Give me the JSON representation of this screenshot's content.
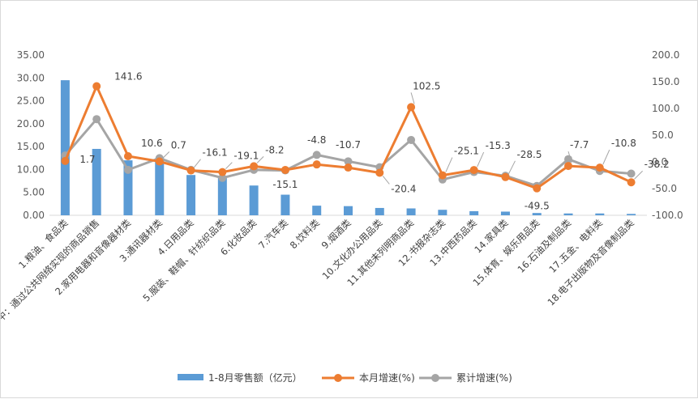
{
  "chart_data": {
    "type": "bar+line",
    "title": "",
    "categories": [
      "1.粮油、食品类",
      "其中：通过公共网络实现的商品销售",
      "2.家用电器和音像器材类",
      "3.通讯器材类",
      "4.日用品类",
      "5.服装、鞋帽、针纺织品类",
      "6.化妆品类",
      "7.汽车类",
      "8.饮料类",
      "9.烟酒类",
      "10.文化办公用品类",
      "11.其他未列明商品类",
      "12.书报杂志类",
      "13.中西药品类",
      "14.家具类",
      "15.体育、娱乐用品类",
      "16.石油及制品类",
      "17.五金、电料类",
      "18.电子出版物及音像制品类"
    ],
    "y_left": {
      "ylim": [
        0,
        35
      ],
      "ticks": [
        "0.00",
        "5.00",
        "10.00",
        "15.00",
        "20.00",
        "25.00",
        "30.00",
        "35.00"
      ]
    },
    "y_right": {
      "ylim": [
        -100,
        200
      ],
      "ticks": [
        "-100.0",
        "-50.0",
        "0.0",
        "50.0",
        "100.0",
        "150.0",
        "200.0"
      ]
    },
    "series": [
      {
        "name": "1-8月零售额（亿元）",
        "kind": "bar",
        "axis": "left",
        "color": "#5b9bd5",
        "values": [
          29.5,
          14.5,
          12.0,
          12.5,
          8.8,
          8.5,
          6.5,
          4.5,
          2.1,
          2.0,
          1.6,
          1.5,
          1.2,
          0.9,
          0.8,
          0.5,
          0.4,
          0.4,
          0.3
        ]
      },
      {
        "name": "本月增速(%)",
        "kind": "line",
        "axis": "right",
        "color": "#ed7d31",
        "values": [
          1.7,
          141.6,
          10.6,
          0.7,
          -16.1,
          -19.1,
          -8.2,
          -15.1,
          -4.8,
          -10.7,
          -20.4,
          102.5,
          -25.1,
          -15.3,
          -28.5,
          -49.5,
          -7.7,
          -10.8,
          -38.2
        ],
        "labels": [
          "1.7",
          "141.6",
          "10.6",
          "0.7",
          "-16.1",
          "-19.1",
          "-8.2",
          "-15.1",
          "-4.8",
          "-10.7",
          "-20.4",
          "102.5",
          "-25.1",
          "-15.3",
          "-28.5",
          "-49.5",
          "-7.7",
          "-10.8",
          "-38.2"
        ]
      },
      {
        "name": "累计增速(%)",
        "kind": "line",
        "axis": "right",
        "color": "#a5a5a5",
        "values": [
          12.0,
          80.0,
          -15.0,
          7.0,
          -15.0,
          -30.0,
          -15.0,
          -16.0,
          13.0,
          1.0,
          -10.0,
          41.0,
          -33.0,
          -19.0,
          -26.0,
          -45.0,
          5.0,
          -17.0,
          -22.0
        ]
      }
    ],
    "legend_position": "bottom",
    "grid": false
  }
}
